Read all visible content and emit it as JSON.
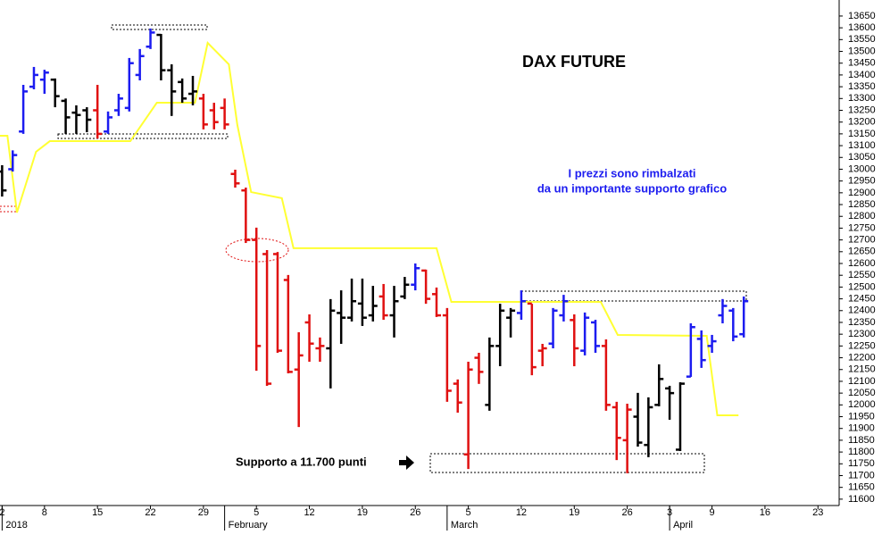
{
  "chart_data": {
    "type": "ohlc",
    "title": "DAX FUTURE",
    "annotations": [
      "I prezzi sono rimbalzati",
      "da un importante supporto grafico",
      "Supporto a 11.700 punti"
    ],
    "x": [
      0,
      1,
      2,
      3,
      4,
      5,
      6,
      7,
      8,
      9,
      10,
      11,
      12,
      13,
      14,
      15,
      16,
      17,
      18,
      19,
      20,
      21,
      22,
      23,
      24,
      25,
      26,
      27,
      28,
      29,
      30,
      31,
      32,
      33,
      34,
      35,
      36,
      37,
      38,
      39,
      40,
      41,
      42,
      43,
      44,
      45,
      46,
      47,
      48,
      49,
      50,
      51,
      52,
      53,
      54,
      55,
      56,
      57,
      58,
      59,
      60,
      61,
      62,
      63,
      64,
      65,
      66,
      67,
      68,
      69,
      70
    ],
    "open": [
      12990,
      13000,
      13160,
      13350,
      13380,
      13380,
      13290,
      13240,
      13250,
      13250,
      13160,
      13250,
      13260,
      13400,
      13520,
      13570,
      13420,
      13370,
      13320,
      13300,
      13250,
      13260,
      12980,
      12910,
      12700,
      12640,
      12640,
      12530,
      12150,
      12350,
      12240,
      12240,
      12390,
      12370,
      12430,
      12380,
      12460,
      12380,
      12460,
      12510,
      12570,
      12470,
      12380,
      12090,
      11790,
      12200,
      12000,
      12250,
      12370,
      12390,
      12430,
      12230,
      12260,
      12380,
      12360,
      12230,
      12350,
      12250,
      11990,
      11850,
      11950,
      11830,
      12000,
      12070,
      11810,
      12120,
      12280,
      12250,
      12380,
      12400,
      12300
    ],
    "high": [
      13017,
      13080,
      13358,
      13434,
      13422,
      13385,
      13300,
      13271,
      13263,
      13358,
      13245,
      13320,
      13472,
      13510,
      13597,
      13574,
      13445,
      13385,
      13396,
      13320,
      13282,
      13300,
      12998,
      12922,
      12752,
      12657,
      12649,
      12551,
      12308,
      12384,
      12286,
      12449,
      12486,
      12536,
      12536,
      12505,
      12513,
      12505,
      12543,
      12600,
      12574,
      12498,
      12411,
      12108,
      12183,
      12221,
      12286,
      12429,
      12411,
      12486,
      12429,
      12259,
      12411,
      12467,
      12384,
      12392,
      12361,
      12278,
      12013,
      12005,
      12051,
      12032,
      12172,
      12081,
      12096,
      12346,
      12316,
      12297,
      12449,
      12411,
      12460
    ],
    "low": [
      12884,
      12990,
      13150,
      13339,
      13320,
      13263,
      13150,
      13150,
      13157,
      13130,
      13150,
      13226,
      13245,
      13377,
      13510,
      13377,
      13226,
      13282,
      13271,
      13169,
      13169,
      13169,
      12922,
      12687,
      12145,
      12081,
      12221,
      12134,
      11906,
      12183,
      12183,
      12070,
      12259,
      12354,
      12335,
      12354,
      12361,
      12286,
      12449,
      12486,
      12429,
      12373,
      12013,
      11967,
      11728,
      12089,
      11975,
      12164,
      12286,
      12361,
      12126,
      12164,
      12240,
      12354,
      12164,
      12210,
      12221,
      11975,
      11766,
      11710,
      11823,
      11778,
      11994,
      11937,
      11804,
      12119,
      12157,
      12221,
      12346,
      12270,
      12286
    ],
    "close": [
      12910,
      13060,
      13330,
      13400,
      13410,
      13310,
      13220,
      13230,
      13210,
      13150,
      13220,
      13300,
      13450,
      13480,
      13580,
      13420,
      13330,
      13300,
      13330,
      13190,
      13200,
      13190,
      12940,
      12700,
      12250,
      12090,
      12230,
      12140,
      12210,
      12260,
      12250,
      12400,
      12370,
      12440,
      12370,
      12420,
      12380,
      12440,
      12510,
      12580,
      12450,
      12380,
      12060,
      12010,
      12150,
      12140,
      12250,
      12400,
      12400,
      12440,
      12160,
      12240,
      12400,
      12440,
      12240,
      12370,
      12250,
      12000,
      11860,
      11980,
      11840,
      11990,
      12110,
      12050,
      12090,
      12330,
      12190,
      12270,
      12420,
      12290,
      12440
    ],
    "colors": [
      "#000",
      "#1c1cf0",
      "#1c1cf0",
      "#1c1cf0",
      "#1c1cf0",
      "#000",
      "#000",
      "#000",
      "#000",
      "#e01010",
      "#1c1cf0",
      "#1c1cf0",
      "#1c1cf0",
      "#1c1cf0",
      "#1c1cf0",
      "#000",
      "#000",
      "#000",
      "#000",
      "#e01010",
      "#e01010",
      "#e01010",
      "#e01010",
      "#e01010",
      "#e01010",
      "#e01010",
      "#e01010",
      "#e01010",
      "#e01010",
      "#e01010",
      "#e01010",
      "#000",
      "#000",
      "#000",
      "#000",
      "#000",
      "#e01010",
      "#000",
      "#000",
      "#1c1cf0",
      "#e01010",
      "#e01010",
      "#e01010",
      "#e01010",
      "#e01010",
      "#e01010",
      "#000",
      "#000",
      "#000",
      "#1c1cf0",
      "#e01010",
      "#e01010",
      "#1c1cf0",
      "#1c1cf0",
      "#e01010",
      "#1c1cf0",
      "#1c1cf0",
      "#e01010",
      "#e01010",
      "#e01010",
      "#000",
      "#000",
      "#000",
      "#000",
      "#000",
      "#1c1cf0",
      "#1c1cf0",
      "#1c1cf0",
      "#1c1cf0",
      "#1c1cf0",
      "#1c1cf0"
    ],
    "overlay": {
      "color": "#ffff33",
      "x": [
        -0.2,
        0.5,
        1.4,
        3.2,
        4.5,
        12.1,
        14.6,
        18.2,
        19.4,
        21.4,
        22.2,
        23.5,
        26.4,
        27.5,
        41.0,
        42.4,
        56.5,
        58.1,
        66.5,
        67.5,
        69.5
      ],
      "values": [
        13142,
        13142,
        12816,
        13074,
        13119,
        13119,
        13282,
        13282,
        13536,
        13445,
        13188,
        12903,
        12877,
        12665,
        12665,
        12437,
        12437,
        12297,
        12293,
        11956,
        11956
      ]
    },
    "xlim": [
      -0.2,
      79
    ],
    "ylim": [
      11573,
      13718
    ],
    "xticks": [
      {
        "value": 0,
        "label": "2"
      },
      {
        "value": 4,
        "label": "8"
      },
      {
        "value": 9,
        "label": "15"
      },
      {
        "value": 14,
        "label": "22"
      },
      {
        "value": 19,
        "label": "29"
      },
      {
        "value": 24,
        "label": "5"
      },
      {
        "value": 29,
        "label": "12"
      },
      {
        "value": 34,
        "label": "19"
      },
      {
        "value": 39,
        "label": "26"
      },
      {
        "value": 44,
        "label": "5"
      },
      {
        "value": 49,
        "label": "12"
      },
      {
        "value": 54,
        "label": "19"
      },
      {
        "value": 59,
        "label": "26"
      },
      {
        "value": 63,
        "label": "3"
      },
      {
        "value": 67,
        "label": "9"
      },
      {
        "value": 72,
        "label": "16"
      },
      {
        "value": 77,
        "label": "23"
      }
    ],
    "month_ticks": [
      {
        "value": 0,
        "label": "2018"
      },
      {
        "value": 21,
        "label": "February"
      },
      {
        "value": 42,
        "label": "March"
      },
      {
        "value": 63,
        "label": "April"
      }
    ],
    "yticks": [
      11600,
      11650,
      11700,
      11750,
      11800,
      11850,
      11900,
      11950,
      12000,
      12050,
      12100,
      12150,
      12200,
      12250,
      12300,
      12350,
      12400,
      12450,
      12500,
      12550,
      12600,
      12650,
      12700,
      12750,
      12800,
      12850,
      12900,
      12950,
      13000,
      13050,
      13100,
      13150,
      13200,
      13250,
      13300,
      13350,
      13400,
      13450,
      13500,
      13550,
      13600,
      13650
    ]
  }
}
